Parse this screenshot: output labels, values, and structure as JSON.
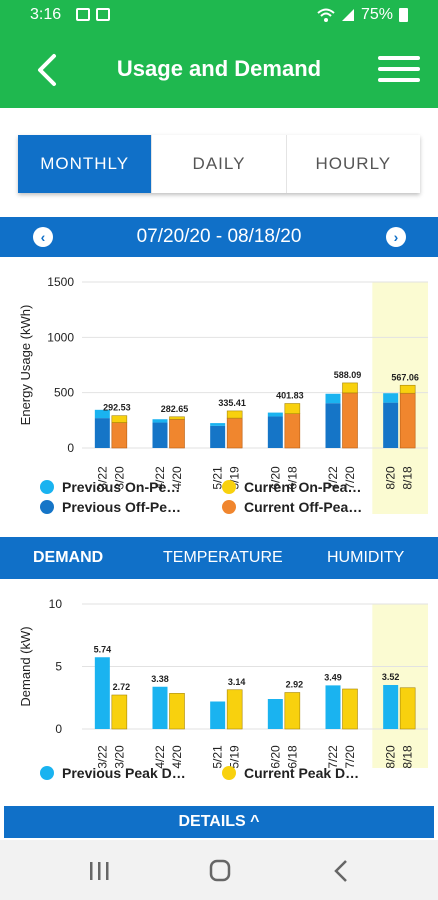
{
  "status_bar": {
    "time": "3:16",
    "battery": "75%"
  },
  "app_bar": {
    "title": "Usage and Demand"
  },
  "period_tabs": [
    {
      "label": "MONTHLY",
      "active": true
    },
    {
      "label": "DAILY",
      "active": false
    },
    {
      "label": "HOURLY",
      "active": false
    }
  ],
  "date_range": "07/20/20 - 08/18/20",
  "colors": {
    "green": "#1fb84f",
    "blue": "#1070c8",
    "previous_on_peak": "#1ab3f0",
    "previous_off_peak": "#1575c7",
    "current_on_peak": "#f8d10e",
    "current_off_peak": "#f0862e",
    "highlight": "#fbfbd2"
  },
  "usage_chart": {
    "chart_data": {
      "type": "bar",
      "ylabel": "Energy Usage (kWh)",
      "ylim": [
        0,
        1500
      ],
      "yticks": [
        "0",
        "500",
        "1000",
        "1500"
      ],
      "groups": [
        {
          "prev_label": "3/22",
          "curr_label": "3/20",
          "prev_on": 75,
          "prev_off": 270,
          "curr_on": 62,
          "curr_off": 230,
          "total_label": "292.53"
        },
        {
          "prev_label": "4/22",
          "curr_label": "4/20",
          "prev_on": 30,
          "prev_off": 230,
          "curr_on": 22,
          "curr_off": 260,
          "total_label": "282.65"
        },
        {
          "prev_label": "5/21",
          "curr_label": "5/19",
          "prev_on": 25,
          "prev_off": 200,
          "curr_on": 65,
          "curr_off": 270,
          "total_label": "335.41"
        },
        {
          "prev_label": "6/20",
          "curr_label": "6/18",
          "prev_on": 35,
          "prev_off": 285,
          "curr_on": 92,
          "curr_off": 310,
          "total_label": "401.83"
        },
        {
          "prev_label": "7/22",
          "curr_label": "7/20",
          "prev_on": 85,
          "prev_off": 405,
          "curr_on": 90,
          "curr_off": 498,
          "total_label": "588.09"
        },
        {
          "prev_label": "8/20",
          "curr_label": "8/18",
          "prev_on": 85,
          "prev_off": 410,
          "curr_on": 72,
          "curr_off": 495,
          "total_label": "567.06",
          "highlight": true
        }
      ],
      "legend": [
        {
          "label": "Previous On-Pe…",
          "color": "#1ab3f0"
        },
        {
          "label": "Current On-Pea…",
          "color": "#f8d10e"
        },
        {
          "label": "Previous Off-Pe…",
          "color": "#1575c7"
        },
        {
          "label": "Current Off-Pea…",
          "color": "#f0862e"
        }
      ]
    }
  },
  "metric_tabs": [
    {
      "label": "DEMAND",
      "active": true
    },
    {
      "label": "TEMPERATURE",
      "active": false
    },
    {
      "label": "HUMIDITY",
      "active": false
    }
  ],
  "demand_chart": {
    "chart_data": {
      "type": "bar",
      "ylabel": "Demand (kW)",
      "ylim": [
        0,
        10
      ],
      "yticks": [
        "0",
        "5",
        "10"
      ],
      "groups": [
        {
          "prev_label": "3/22",
          "curr_label": "3/20",
          "prev": 5.74,
          "curr": 2.72,
          "prev_text": "5.74",
          "curr_text": "2.72"
        },
        {
          "prev_label": "4/22",
          "curr_label": "4/20",
          "prev": 3.38,
          "curr": 2.85,
          "prev_text": "3.38",
          "curr_text": ""
        },
        {
          "prev_label": "5/21",
          "curr_label": "5/19",
          "prev": 2.2,
          "curr": 3.14,
          "prev_text": "",
          "curr_text": "3.14"
        },
        {
          "prev_label": "6/20",
          "curr_label": "6/18",
          "prev": 2.4,
          "curr": 2.92,
          "prev_text": "",
          "curr_text": "2.92"
        },
        {
          "prev_label": "7/22",
          "curr_label": "7/20",
          "prev": 3.49,
          "curr": 3.2,
          "prev_text": "3.49",
          "curr_text": ""
        },
        {
          "prev_label": "8/20",
          "curr_label": "8/18",
          "prev": 3.52,
          "curr": 3.3,
          "prev_text": "3.52",
          "curr_text": "",
          "highlight": true
        }
      ],
      "legend": [
        {
          "label": "Previous Peak D…",
          "color": "#1ab3f0"
        },
        {
          "label": "Current Peak D…",
          "color": "#f8d10e"
        }
      ]
    }
  },
  "details_label": "DETAILS ^"
}
